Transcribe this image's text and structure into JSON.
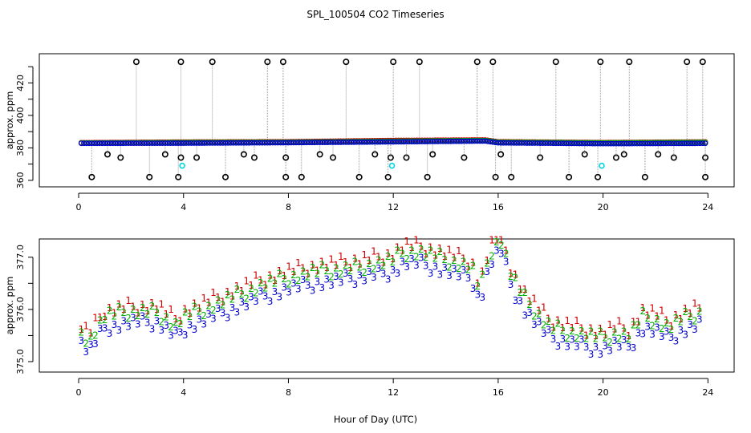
{
  "title": "SPL_100504  CO2 Timeseries",
  "xlabel": "Hour of Day (UTC)",
  "chart_data": [
    {
      "type": "scatter",
      "title": "",
      "ylabel": "approx. ppm",
      "xlim": [
        -1.5,
        25
      ],
      "ylim": [
        356,
        438
      ],
      "xticks": [
        "0",
        "4",
        "8",
        "12",
        "16",
        "20",
        "24"
      ],
      "yticks": [
        "360",
        "380",
        "400",
        "420"
      ],
      "legend": "none",
      "grid": false,
      "baseline_series": [
        {
          "name": "flag-red",
          "color": "#d00000",
          "x_start": 0.1,
          "x_end": 23.9,
          "step": 0.1,
          "y_profile": [
            [
              0.1,
              383.2
            ],
            [
              4.0,
              383.6
            ],
            [
              8.0,
              383.8
            ],
            [
              12.0,
              384.6
            ],
            [
              15.5,
              384.9
            ],
            [
              16.0,
              383.8
            ],
            [
              20.0,
              383.3
            ],
            [
              23.9,
              383.7
            ]
          ]
        },
        {
          "name": "flag-green",
          "color": "#00b000",
          "x_start": 0.1,
          "x_end": 23.9,
          "step": 0.1,
          "y_profile": [
            [
              0.1,
              383.0
            ],
            [
              4.0,
              383.3
            ],
            [
              8.0,
              383.5
            ],
            [
              12.0,
              384.1
            ],
            [
              15.5,
              384.6
            ],
            [
              16.0,
              383.5
            ],
            [
              20.0,
              383.1
            ],
            [
              23.9,
              383.4
            ]
          ]
        },
        {
          "name": "flag-blue",
          "color": "#0000cc",
          "x_start": 0.1,
          "x_end": 23.9,
          "step": 0.1,
          "y_profile": [
            [
              0.1,
              382.8
            ],
            [
              4.0,
              382.9
            ],
            [
              8.0,
              383.2
            ],
            [
              12.0,
              383.7
            ],
            [
              15.5,
              384.2
            ],
            [
              16.0,
              383.1
            ],
            [
              20.0,
              382.6
            ],
            [
              23.9,
              382.8
            ]
          ]
        }
      ],
      "excursions": {
        "color": "#000000",
        "high_y": 433,
        "high_x": [
          2.2,
          3.9,
          5.1,
          7.2,
          7.8,
          10.2,
          12.0,
          13.0,
          15.2,
          15.8,
          18.2,
          19.9,
          21.0,
          23.2,
          23.8
        ],
        "mid_y": 374,
        "mid_x": [
          1.6,
          3.9,
          4.5,
          6.7,
          7.9,
          9.7,
          11.9,
          12.5,
          14.7,
          17.6,
          20.5,
          22.7,
          23.9
        ],
        "low_y": 362,
        "low_x": [
          0.5,
          2.7,
          3.8,
          5.6,
          7.9,
          8.5,
          10.7,
          11.8,
          13.3,
          15.9,
          16.5,
          18.7,
          19.8,
          21.6,
          23.9
        ],
        "lowmid_y": 376,
        "lowmid_x": [
          1.1,
          3.3,
          6.3,
          9.2,
          11.3,
          13.5,
          16.1,
          19.3,
          20.8,
          22.1
        ]
      },
      "cyan_points": {
        "color": "#00d4e0",
        "x": [
          3.95,
          11.95,
          19.95
        ],
        "y": [
          369,
          369,
          369
        ]
      }
    },
    {
      "type": "scatter",
      "title": "",
      "ylabel": "approx. ppm",
      "xlim": [
        -1.5,
        25
      ],
      "ylim": [
        374.8,
        377.35
      ],
      "xticks": [
        "0",
        "4",
        "8",
        "12",
        "16",
        "20",
        "24"
      ],
      "yticks": [
        "375.0",
        "376.0",
        "377.0"
      ],
      "legend": "none",
      "grid": false,
      "series": [
        {
          "name": "1",
          "label": "1",
          "color": "#d00000",
          "offset": 0.22,
          "profile": [
            [
              0.1,
              375.45
            ],
            [
              0.4,
              375.3
            ],
            [
              1.0,
              375.75
            ],
            [
              2.0,
              375.85
            ],
            [
              3.0,
              375.85
            ],
            [
              3.7,
              375.6
            ],
            [
              4.0,
              375.75
            ],
            [
              5.0,
              375.95
            ],
            [
              6.0,
              376.15
            ],
            [
              7.0,
              376.35
            ],
            [
              8.0,
              376.5
            ],
            [
              9.0,
              376.6
            ],
            [
              10.0,
              376.65
            ],
            [
              11.0,
              376.75
            ],
            [
              12.0,
              376.85
            ],
            [
              12.4,
              377.0
            ],
            [
              13.0,
              377.0
            ],
            [
              14.0,
              376.85
            ],
            [
              15.0,
              376.7
            ],
            [
              15.3,
              376.25
            ],
            [
              15.7,
              377.0
            ],
            [
              16.1,
              377.25
            ],
            [
              16.5,
              376.55
            ],
            [
              17.0,
              376.1
            ],
            [
              17.6,
              375.75
            ],
            [
              18.0,
              375.55
            ],
            [
              19.0,
              375.45
            ],
            [
              20.0,
              375.35
            ],
            [
              20.5,
              375.45
            ],
            [
              21.0,
              375.4
            ],
            [
              21.5,
              375.75
            ],
            [
              22.0,
              375.7
            ],
            [
              22.5,
              375.55
            ],
            [
              23.0,
              375.7
            ],
            [
              23.8,
              375.85
            ]
          ]
        },
        {
          "name": "2",
          "label": "2",
          "color": "#00b000",
          "offset": 0.1,
          "profile": [
            [
              0.1,
              375.45
            ],
            [
              0.4,
              375.3
            ],
            [
              1.0,
              375.75
            ],
            [
              2.0,
              375.85
            ],
            [
              3.0,
              375.85
            ],
            [
              3.7,
              375.6
            ],
            [
              4.0,
              375.75
            ],
            [
              5.0,
              375.95
            ],
            [
              6.0,
              376.15
            ],
            [
              7.0,
              376.35
            ],
            [
              8.0,
              376.5
            ],
            [
              9.0,
              376.6
            ],
            [
              10.0,
              376.65
            ],
            [
              11.0,
              376.75
            ],
            [
              12.0,
              376.85
            ],
            [
              12.4,
              377.0
            ],
            [
              13.0,
              377.0
            ],
            [
              14.0,
              376.85
            ],
            [
              15.0,
              376.7
            ],
            [
              15.3,
              376.25
            ],
            [
              15.7,
              377.0
            ],
            [
              16.1,
              377.25
            ],
            [
              16.5,
              376.55
            ],
            [
              17.0,
              376.1
            ],
            [
              17.6,
              375.75
            ],
            [
              18.0,
              375.55
            ],
            [
              19.0,
              375.45
            ],
            [
              20.0,
              375.35
            ],
            [
              20.5,
              375.45
            ],
            [
              21.0,
              375.4
            ],
            [
              21.5,
              375.75
            ],
            [
              22.0,
              375.7
            ],
            [
              22.5,
              375.55
            ],
            [
              23.0,
              375.7
            ],
            [
              23.8,
              375.85
            ]
          ]
        },
        {
          "name": "3",
          "label": "3",
          "color": "#0000cc",
          "offset": -0.12,
          "profile": [
            [
              0.1,
              375.45
            ],
            [
              0.4,
              375.3
            ],
            [
              1.0,
              375.75
            ],
            [
              2.0,
              375.85
            ],
            [
              3.0,
              375.85
            ],
            [
              3.7,
              375.6
            ],
            [
              4.0,
              375.75
            ],
            [
              5.0,
              375.95
            ],
            [
              6.0,
              376.15
            ],
            [
              7.0,
              376.35
            ],
            [
              8.0,
              376.5
            ],
            [
              9.0,
              376.6
            ],
            [
              10.0,
              376.65
            ],
            [
              11.0,
              376.75
            ],
            [
              12.0,
              376.85
            ],
            [
              12.4,
              377.0
            ],
            [
              13.0,
              377.0
            ],
            [
              14.0,
              376.85
            ],
            [
              15.0,
              376.7
            ],
            [
              15.3,
              376.25
            ],
            [
              15.7,
              377.0
            ],
            [
              16.1,
              377.25
            ],
            [
              16.5,
              376.55
            ],
            [
              17.0,
              376.1
            ],
            [
              17.6,
              375.75
            ],
            [
              18.0,
              375.55
            ],
            [
              19.0,
              375.45
            ],
            [
              20.0,
              375.35
            ],
            [
              20.5,
              375.45
            ],
            [
              21.0,
              375.4
            ],
            [
              21.5,
              375.75
            ],
            [
              22.0,
              375.7
            ],
            [
              22.5,
              375.55
            ],
            [
              23.0,
              375.7
            ],
            [
              23.8,
              375.85
            ]
          ]
        }
      ]
    }
  ]
}
